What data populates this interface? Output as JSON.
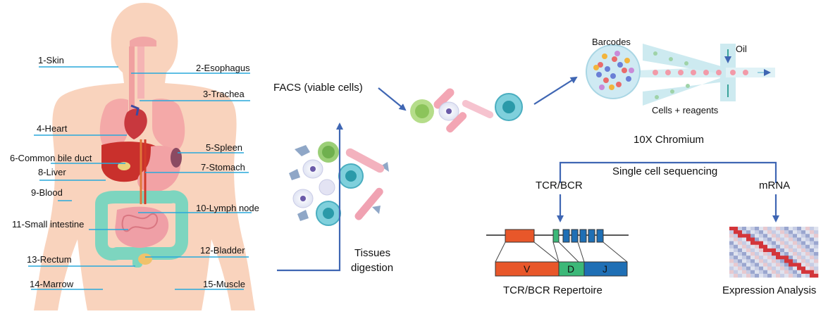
{
  "organs": [
    {
      "label": "1-Skin"
    },
    {
      "label": "2-Esophagus"
    },
    {
      "label": "3-Trachea"
    },
    {
      "label": "4-Heart"
    },
    {
      "label": "5-Spleen"
    },
    {
      "label": "6-Common bile duct"
    },
    {
      "label": "7-Stomach"
    },
    {
      "label": "8-Liver"
    },
    {
      "label": "9-Blood"
    },
    {
      "label": "10-Lymph node"
    },
    {
      "label": "11-Small intestine"
    },
    {
      "label": "12-Bladder"
    },
    {
      "label": "13-Rectum"
    },
    {
      "label": "14-Marrow"
    },
    {
      "label": "15-Muscle"
    }
  ],
  "workflow": {
    "tissues_line1": "Tissues",
    "tissues_line2": "digestion",
    "facs": "FACS (viable cells)",
    "barcodes": "Barcodes",
    "oil": "Oil",
    "cells_reagents": "Cells + reagents",
    "chromium": "10X Chromium",
    "single_cell": "Single cell sequencing",
    "tcr_bcr": "TCR/BCR",
    "mrna": "mRNA",
    "segment_v": "V",
    "segment_d": "D",
    "segment_j": "J",
    "repertoire": "TCR/BCR Repertoire",
    "expression": "Expression Analysis"
  },
  "colors": {
    "arrow": "#3f66b3",
    "pointer": "#29a9dc",
    "body": "#f9d3bd",
    "seg_v": "#e8572a",
    "seg_d": "#3cb878",
    "seg_j": "#1f6fb5"
  }
}
